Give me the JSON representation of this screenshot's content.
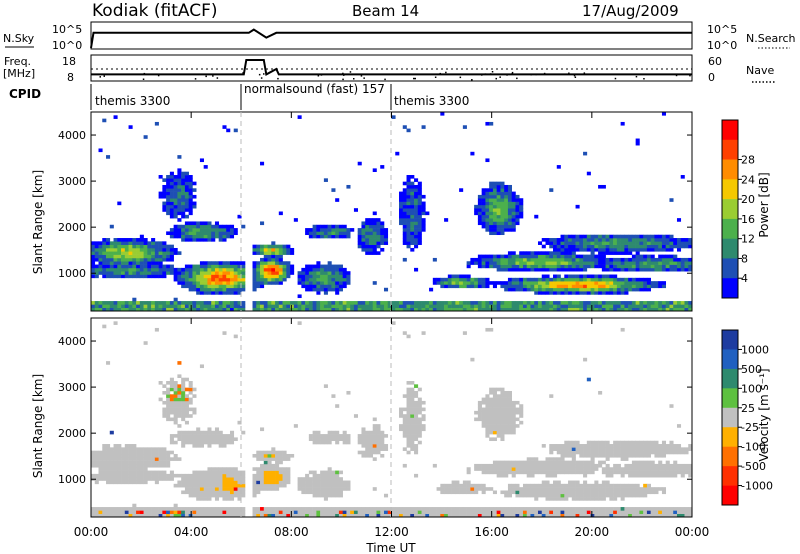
{
  "header": {
    "station": "Kodiak (fitACF)",
    "beam": "Beam 14",
    "date": "17/Aug/2009"
  },
  "top_panels": {
    "nsky_label": "N.Sky",
    "nsky_ticks": [
      "10^5",
      "10^0"
    ],
    "nsearch_label": "N.Search",
    "nsearch_ticks": [
      "10^5",
      "10^0"
    ],
    "freq_label": "Freq.",
    "freq_unit": "[MHz]",
    "freq_ticks": [
      "18",
      "8"
    ],
    "nave_label": "Nave",
    "nave_ticks": [
      "60",
      "0"
    ],
    "cpid_label": "CPID"
  },
  "cpid_segments": [
    {
      "name": "themis 3300",
      "start_hour": 0
    },
    {
      "name": "normalsound (fast) 157",
      "start_hour": 6
    },
    {
      "name": "themis 3300",
      "start_hour": 12
    }
  ],
  "power_panel": {
    "ylabel": "Slant Range [km]",
    "yticks": [
      "1000",
      "2000",
      "3000",
      "4000"
    ],
    "colorbar_label": "Power [dB]",
    "colorbar_ticks": [
      "4",
      "8",
      "12",
      "16",
      "20",
      "24",
      "28"
    ],
    "colors": [
      "#0000ff",
      "#1e4fb4",
      "#2e8a6e",
      "#4cb04c",
      "#9acd32",
      "#f5c800",
      "#ff8c00",
      "#ff4000",
      "#ff0000"
    ]
  },
  "velocity_panel": {
    "ylabel": "Slant Range [km]",
    "yticks": [
      "1000",
      "2000",
      "3000",
      "4000"
    ],
    "colorbar_label": "Velocity [m s⁻¹]",
    "colorbar_ticks": [
      "1000",
      "500",
      "100",
      "25",
      "-25",
      "-100",
      "-500",
      "-1000"
    ],
    "colors": [
      "#1e3ca0",
      "#2060c0",
      "#2e8a6e",
      "#5ec040",
      "#c0c0c0",
      "#ffb000",
      "#ff7000",
      "#ff3000",
      "#ff0000"
    ]
  },
  "xaxis": {
    "ticks": [
      "00:00",
      "04:00",
      "08:00",
      "12:00",
      "16:00",
      "20:00",
      "00:00"
    ],
    "label": "Time UT"
  },
  "chart_data": [
    {
      "type": "line",
      "name": "N.Sky",
      "x_hours": [
        0,
        0.1,
        6.3,
        6.5,
        7.0,
        7.4,
        24
      ],
      "y_log10": [
        0,
        3.8,
        3.8,
        4.6,
        2.6,
        3.8,
        3.8
      ]
    },
    {
      "type": "line",
      "name": "Freq.",
      "x_hours": [
        0,
        6.1,
        6.2,
        6.9,
        7.0,
        7.4,
        7.5,
        24
      ],
      "y_mhz": [
        10.3,
        10.3,
        17.5,
        17.5,
        10.3,
        13,
        10.3,
        10.3
      ]
    },
    {
      "type": "heatmap",
      "name": "Power",
      "x_range_hours": [
        0,
        24
      ],
      "y_range_km": [
        180,
        4500
      ],
      "z_range_db": [
        0,
        31
      ]
    },
    {
      "type": "heatmap",
      "name": "Velocity",
      "x_range_hours": [
        0,
        24
      ],
      "y_range_km": [
        180,
        4500
      ],
      "z_range_ms": [
        -1000,
        1000
      ]
    }
  ]
}
